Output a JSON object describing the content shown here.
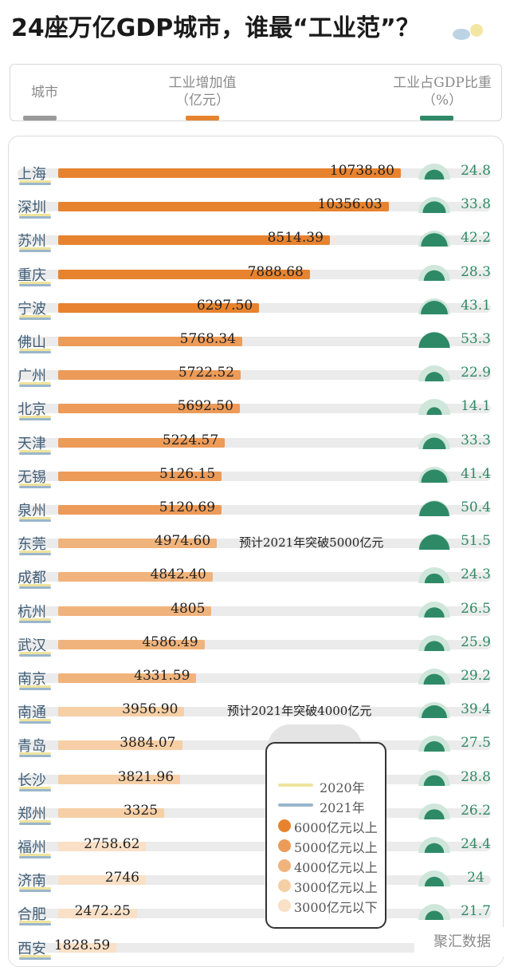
{
  "title": "24座万亿GDP城市，谁最“工业范”？",
  "header": {
    "city": "城市",
    "industry_value": "工业增加值",
    "industry_unit": "（亿元）",
    "share": "工业占GDP比重",
    "share_unit": "（%）"
  },
  "colors": {
    "tier_6000_plus": "#e7832f",
    "tier_5000_plus": "#ec9b58",
    "tier_4000_plus": "#f0b37c",
    "tier_3000_plus": "#f6cfa6",
    "tier_below_3000": "#f9e0c6",
    "line_2020": "#efe39e",
    "line_2021": "#9ab6cc",
    "share_green": "#2e8a66",
    "city_text": "#3f5e78",
    "header_gray": "#8a8a8a"
  },
  "legend": {
    "items": [
      {
        "label": "2020年",
        "kind": "line",
        "color": "#efe39e"
      },
      {
        "label": "2021年",
        "kind": "line",
        "color": "#9ab6cc"
      },
      {
        "label": "6000亿元以上",
        "kind": "dot",
        "color": "#e7832f"
      },
      {
        "label": "5000亿元以上",
        "kind": "dot",
        "color": "#ec9b58"
      },
      {
        "label": "4000亿元以上",
        "kind": "dot",
        "color": "#f0b37c"
      },
      {
        "label": "3000亿元以上",
        "kind": "dot",
        "color": "#f6cfa6"
      },
      {
        "label": "3000亿元以下",
        "kind": "dot",
        "color": "#f9e0c6"
      }
    ]
  },
  "watermark": "聚汇数据",
  "chart_data": {
    "type": "bar",
    "title": "24座万亿GDP城市，谁最“工业范”？",
    "xlabel": "工业增加值（亿元）",
    "ylabel": "城市",
    "xlim": [
      0,
      11000
    ],
    "categories": [
      "上海",
      "深圳",
      "苏州",
      "重庆",
      "宁波",
      "佛山",
      "广州",
      "北京",
      "天津",
      "无锡",
      "泉州",
      "东莞",
      "成都",
      "杭州",
      "武汉",
      "南京",
      "南通",
      "青岛",
      "长沙",
      "郑州",
      "福州",
      "济南",
      "合肥",
      "西安"
    ],
    "series": [
      {
        "name": "工业增加值",
        "values_text": [
          "10738.80",
          "10356.03",
          "8514.39",
          "7888.68",
          "6297.50",
          "5768.34",
          "5722.52",
          "5692.50",
          "5224.57",
          "5126.15",
          "5120.69",
          "4974.60",
          "4842.40",
          "4805",
          "4586.49",
          "4331.59",
          "3956.90",
          "3884.07",
          "3821.96",
          "3325",
          "2758.62",
          "2746",
          "2472.25",
          "1828.59"
        ],
        "values": [
          10738.8,
          10356.03,
          8514.39,
          7888.68,
          6297.5,
          5768.34,
          5722.52,
          5692.5,
          5224.57,
          5126.15,
          5120.69,
          4974.6,
          4842.4,
          4805,
          4586.49,
          4331.59,
          3956.9,
          3884.07,
          3821.96,
          3325,
          2758.62,
          2746,
          2472.25,
          1828.59
        ]
      },
      {
        "name": "工业占GDP比重",
        "values_text": [
          "24.8",
          "33.8",
          "42.2",
          "28.3",
          "43.1",
          "53.3",
          "22.9",
          "14.1",
          "33.3",
          "41.4",
          "50.4",
          "51.5",
          "24.3",
          "26.5",
          "25.9",
          "29.2",
          "39.4",
          "27.5",
          "28.8",
          "26.2",
          "24.4",
          "24",
          "21.7",
          ""
        ],
        "values": [
          24.8,
          33.8,
          42.2,
          28.3,
          43.1,
          53.3,
          22.9,
          14.1,
          33.3,
          41.4,
          50.4,
          51.5,
          24.3,
          26.5,
          25.9,
          29.2,
          39.4,
          27.5,
          28.8,
          26.2,
          24.4,
          24,
          21.7,
          null
        ]
      }
    ],
    "annotations": [
      {
        "category": "东莞",
        "text": "预计2021年突破5000亿元"
      },
      {
        "category": "南通",
        "text": "预计2021年突破4000亿元"
      }
    ]
  }
}
